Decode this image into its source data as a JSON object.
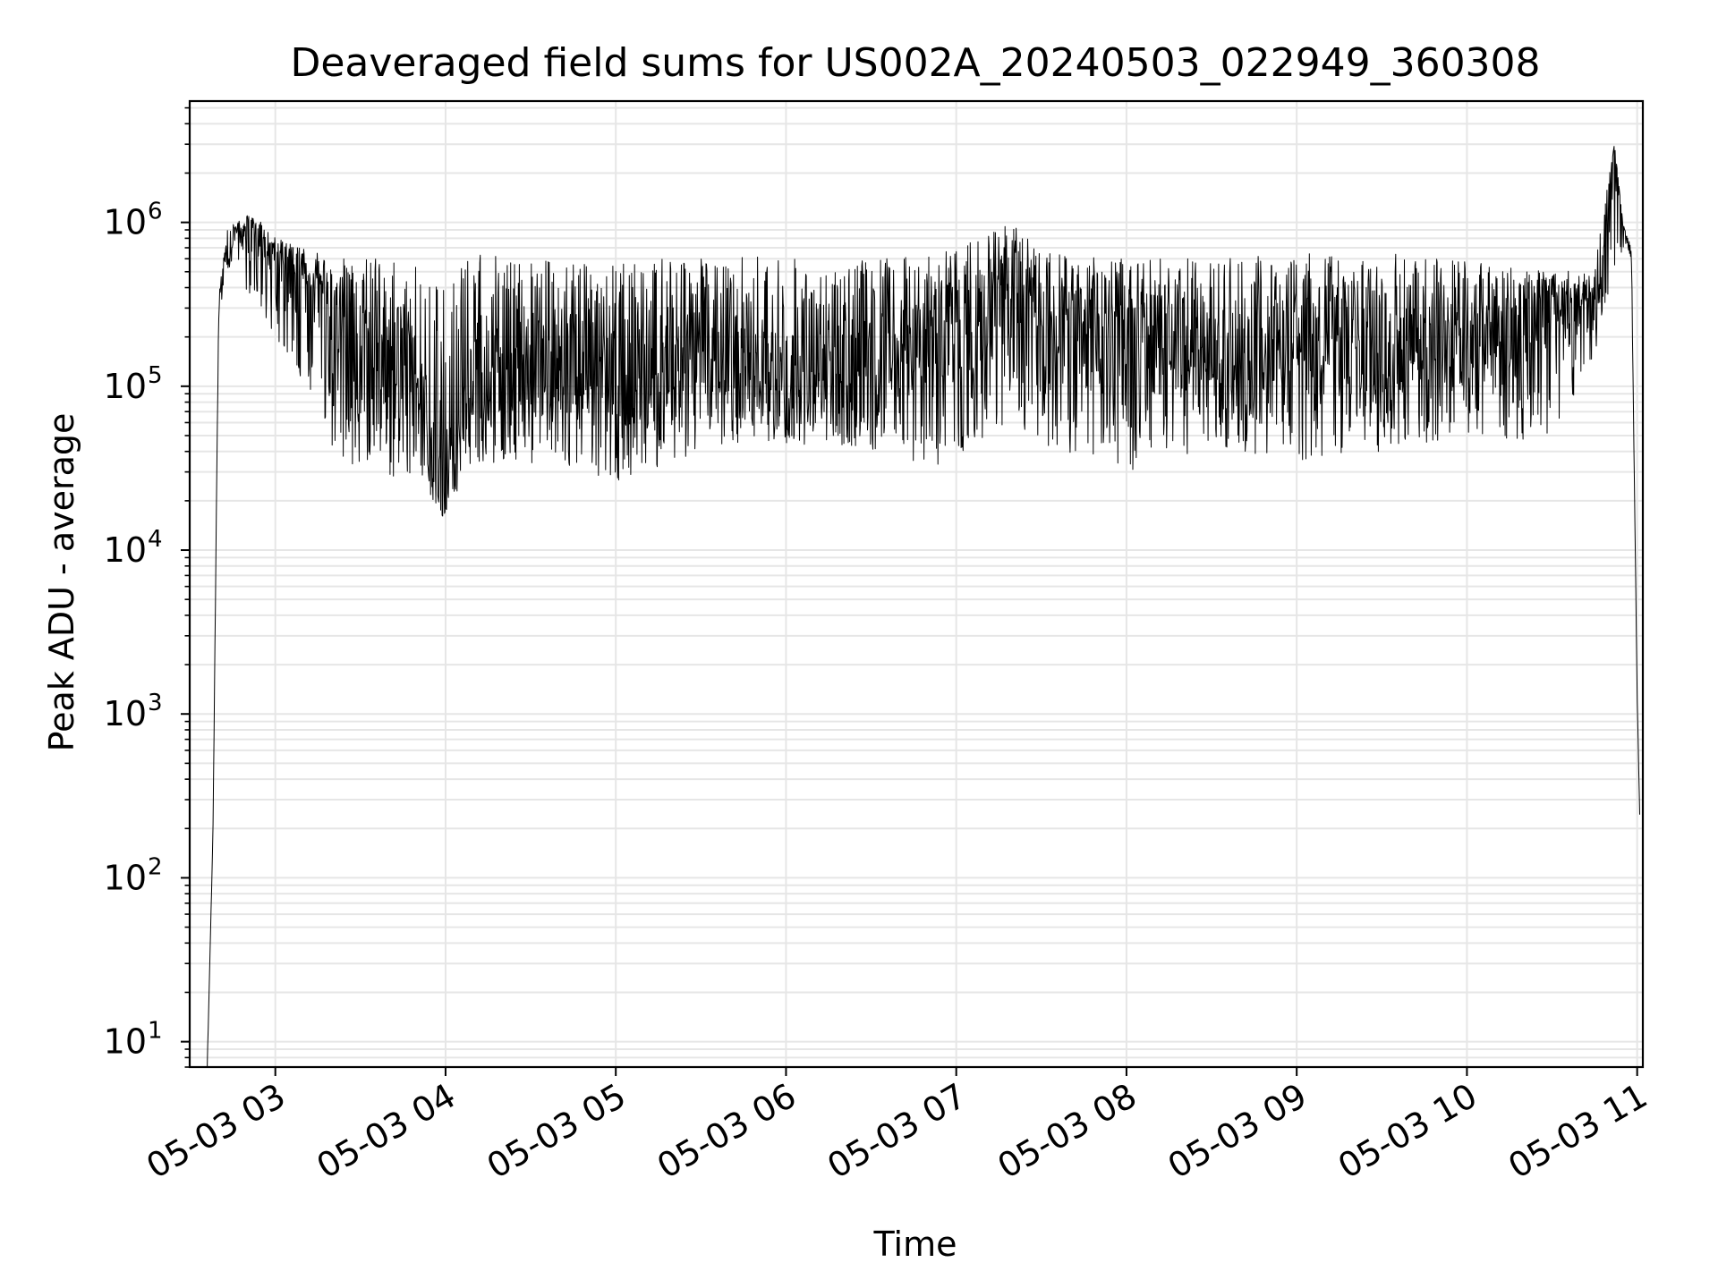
{
  "chart_data": {
    "type": "line",
    "title": "Deaveraged field sums for US002A_20240503_022949_360308",
    "xlabel": "Time",
    "ylabel": "Peak ADU - average",
    "x_unit": "time (2024-05-03)",
    "xlim": [
      "2024-05-03 02:29:49",
      "2024-05-03 11:02:00"
    ],
    "ylim": [
      7,
      5500000
    ],
    "yscale": "log",
    "grid": true,
    "legend": "none",
    "line_color": "#000000",
    "grid_color": "#e6e6e6",
    "x_ticks": [
      "05-03 03",
      "05-03 04",
      "05-03 05",
      "05-03 06",
      "05-03 07",
      "05-03 08",
      "05-03 09",
      "05-03 10",
      "05-03 11"
    ],
    "x_tick_values": [
      "2024-05-03 03:00",
      "2024-05-03 04:00",
      "2024-05-03 05:00",
      "2024-05-03 06:00",
      "2024-05-03 07:00",
      "2024-05-03 08:00",
      "2024-05-03 09:00",
      "2024-05-03 10:00",
      "2024-05-03 11:00"
    ],
    "y_ticks": [
      {
        "base": "10",
        "exp": "1",
        "value": 10
      },
      {
        "base": "10",
        "exp": "2",
        "value": 100
      },
      {
        "base": "10",
        "exp": "3",
        "value": 1000
      },
      {
        "base": "10",
        "exp": "4",
        "value": 10000
      },
      {
        "base": "10",
        "exp": "5",
        "value": 100000
      },
      {
        "base": "10",
        "exp": "6",
        "value": 1000000
      }
    ],
    "series": [
      {
        "x": [
          "2024-05-03 02:36",
          "2024-05-03 02:38",
          "2024-05-03 02:40",
          "2024-05-03 02:43",
          "2024-05-03 02:46",
          "2024-05-03 02:50",
          "2024-05-03 02:55",
          "2024-05-03 03:00",
          "2024-05-03 03:10",
          "2024-05-03 03:20",
          "2024-05-03 03:30",
          "2024-05-03 03:40",
          "2024-05-03 03:50",
          "2024-05-03 03:59",
          "2024-05-03 04:10",
          "2024-05-03 04:30",
          "2024-05-03 05:00",
          "2024-05-03 05:30",
          "2024-05-03 06:00",
          "2024-05-03 06:30",
          "2024-05-03 06:55",
          "2024-05-03 07:20",
          "2024-05-03 07:30",
          "2024-05-03 08:00",
          "2024-05-03 08:30",
          "2024-05-03 09:00",
          "2024-05-03 09:30",
          "2024-05-03 10:00",
          "2024-05-03 10:30",
          "2024-05-03 10:45",
          "2024-05-03 10:52",
          "2024-05-03 10:55",
          "2024-05-03 10:58",
          "2024-05-03 11:00",
          "2024-05-03 11:01"
        ],
        "y": [
          7,
          180,
          300000,
          700000,
          850000,
          900000,
          800000,
          600000,
          400000,
          250000,
          150000,
          130000,
          120000,
          16000,
          150000,
          120000,
          120000,
          130000,
          120000,
          140000,
          160000,
          400000,
          250000,
          200000,
          170000,
          180000,
          160000,
          170000,
          280000,
          300000,
          3000000,
          950000,
          600000,
          1300,
          200
        ],
        "envelope_high": [
          7,
          180,
          350000,
          900000,
          1000000,
          1100000,
          1000000,
          800000,
          700000,
          600000,
          600000,
          600000,
          550000,
          450000,
          650000,
          600000,
          550000,
          650000,
          600000,
          600000,
          650000,
          1000000,
          650000,
          600000,
          600000,
          650000,
          650000,
          600000,
          500000,
          550000,
          3000000,
          980000,
          700000,
          1300,
          200
        ],
        "envelope_low": [
          7,
          180,
          250000,
          500000,
          600000,
          350000,
          300000,
          200000,
          90000,
          40000,
          30000,
          25000,
          30000,
          16000,
          35000,
          30000,
          25000,
          40000,
          45000,
          40000,
          30000,
          60000,
          40000,
          30000,
          40000,
          35000,
          40000,
          50000,
          45000,
          150000,
          500000,
          700000,
          500000,
          1300,
          200
        ]
      }
    ]
  }
}
